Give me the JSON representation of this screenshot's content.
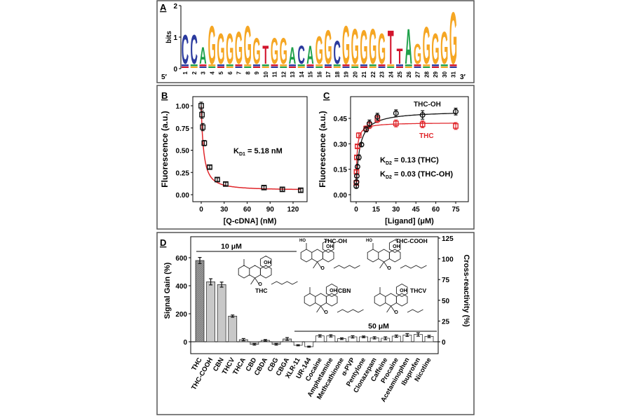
{
  "chart_data": [
    {
      "panel": "A",
      "type": "sequence-logo",
      "ylabel": "bits",
      "ylim": [
        0,
        2
      ],
      "yticks": [
        "0",
        "1",
        "2"
      ],
      "end_labels": [
        "5′",
        "3′"
      ],
      "positions": [
        "1",
        "2",
        "3",
        "4",
        "5",
        "6",
        "7",
        "8",
        "9",
        "10",
        "11",
        "12",
        "13",
        "14",
        "15",
        "16",
        "17",
        "18",
        "19",
        "20",
        "21",
        "22",
        "23",
        "24",
        "25",
        "26",
        "27",
        "28",
        "29",
        "30",
        "31"
      ],
      "letters": [
        "C",
        "C",
        "A",
        "G",
        "G",
        "G",
        "G",
        "G",
        "G",
        "T",
        "G",
        "G",
        "A",
        "C",
        "A",
        "G",
        "G",
        "C",
        "G",
        "G",
        "G",
        "G",
        "G",
        "T",
        "T",
        "A",
        "G",
        "G",
        "G",
        "G",
        "G"
      ],
      "heights_bits": [
        0.95,
        0.95,
        0.55,
        1.25,
        1.0,
        1.0,
        1.05,
        1.25,
        0.85,
        0.6,
        0.85,
        0.85,
        0.55,
        0.6,
        0.6,
        0.9,
        1.1,
        0.75,
        1.25,
        1.15,
        1.1,
        1.15,
        1.0,
        1.1,
        0.5,
        1.15,
        0.65,
        1.2,
        1.0,
        1.05,
        1.7
      ],
      "colors": {
        "A": "#1fa14a",
        "C": "#2a3a9e",
        "G": "#f5a623",
        "T": "#d2142c"
      }
    },
    {
      "panel": "B",
      "type": "scatter",
      "xlabel": "[Q-cDNA] (nM)",
      "ylabel": "Fluorescence (a.u.)",
      "xlim": [
        -10,
        140
      ],
      "ylim": [
        -0.07,
        1.11
      ],
      "xticks": [
        "0",
        "30",
        "60",
        "90",
        "120"
      ],
      "yticks": [
        "0.00",
        "0.25",
        "0.50",
        "0.75",
        "1.00"
      ],
      "annotation": {
        "main": "K",
        "sub": "D1",
        "rest": " = 5.18 nM"
      },
      "fit_color": "#e0262b",
      "series": [
        {
          "x": [
            0,
            1,
            2,
            4,
            11,
            21,
            32,
            82,
            106,
            130
          ],
          "y": [
            1.0,
            0.9,
            0.76,
            0.58,
            0.31,
            0.17,
            0.12,
            0.08,
            0.06,
            0.05
          ],
          "err": [
            0.04,
            0.04,
            0.04,
            0.03,
            0.02,
            0.02,
            0.02,
            0.02,
            0.02,
            0.02
          ]
        }
      ]
    },
    {
      "panel": "C",
      "type": "scatter",
      "xlabel": "[Ligand] (μM)",
      "ylabel": "Fluorescence (a.u.)",
      "xlim": [
        -4,
        80
      ],
      "ylim": [
        -0.08,
        0.6
      ],
      "xticks": [
        "0",
        "15",
        "30",
        "45",
        "60",
        "75"
      ],
      "yticks": [
        "0.00",
        "0.15",
        "0.30",
        "0.45"
      ],
      "annotations": [
        {
          "main": "K",
          "sub": "D2",
          "rest": " = 0.13 (THC)"
        },
        {
          "main": "K",
          "sub": "D2",
          "rest": " = 0.03 (THC-OH)"
        }
      ],
      "series": [
        {
          "name": "THC-OH",
          "color": "#111111",
          "marker": "circle",
          "x": [
            0.1,
            0.25,
            0.5,
            1,
            2,
            4,
            7.5,
            10,
            16,
            30,
            50,
            75
          ],
          "y": [
            0.05,
            0.075,
            0.11,
            0.165,
            0.22,
            0.295,
            0.385,
            0.42,
            0.46,
            0.48,
            0.47,
            0.49
          ],
          "err": [
            0.01,
            0.01,
            0.01,
            0.01,
            0.015,
            0.01,
            0.015,
            0.02,
            0.02,
            0.02,
            0.025,
            0.02
          ]
        },
        {
          "name": "THC",
          "color": "#e0262b",
          "marker": "square",
          "x": [
            0.1,
            0.25,
            0.5,
            1,
            2,
            7.5,
            10,
            16,
            30,
            50,
            75
          ],
          "y": [
            0.07,
            0.135,
            0.22,
            0.285,
            0.35,
            0.39,
            0.41,
            0.445,
            0.42,
            0.415,
            0.405
          ],
          "err": [
            0.01,
            0.01,
            0.01,
            0.01,
            0.015,
            0.015,
            0.02,
            0.02,
            0.02,
            0.02,
            0.02
          ]
        }
      ]
    },
    {
      "panel": "D",
      "type": "bar",
      "ylabel": "Signal Gain (%)",
      "y2label": "Cross-reactivity (%)",
      "ylim": [
        -100,
        750
      ],
      "y2lim": [
        -17,
        125
      ],
      "yticks": [
        "0",
        "200",
        "400",
        "600"
      ],
      "y2ticks": [
        "0",
        "25",
        "50",
        "75",
        "100",
        "125"
      ],
      "categories": [
        "THC",
        "THC-COOH",
        "CBN",
        "THCV",
        "THCA",
        "CBD",
        "CBDA",
        "CBG",
        "CBGA",
        "XLR-11",
        "UR-144",
        "Cocaine",
        "Amphetamine",
        "Methcathinone",
        "α-PVP",
        "Pentylone",
        "Clonazepam",
        "Caffeine",
        "Procaine",
        "Acetaminophen",
        "Ibuprofen",
        "Nicotine"
      ],
      "values": [
        580,
        428,
        408,
        183,
        15,
        -18,
        10,
        -18,
        20,
        -25,
        -35,
        42,
        42,
        22,
        35,
        35,
        28,
        25,
        40,
        48,
        52,
        38
      ],
      "errors": [
        22,
        22,
        18,
        8,
        8,
        6,
        6,
        6,
        10,
        4,
        4,
        8,
        8,
        6,
        8,
        6,
        8,
        10,
        8,
        10,
        12,
        8
      ],
      "groups": [
        {
          "label": "10 μM"
        },
        {
          "label": "50 μM"
        }
      ],
      "colors": {
        "thc": "#9a9a9a",
        "cannabinoid": "#c8c8c8",
        "other": "#ffffff"
      },
      "structures": [
        "THC",
        "THC-OH",
        "THC-COOH",
        "CBN",
        "THCV"
      ],
      "atom_labels": {
        "oh": "OH",
        "o": "O",
        "ho": "HO"
      }
    }
  ],
  "panels": {
    "a": "A",
    "b": "B",
    "c": "C",
    "d": "D"
  }
}
